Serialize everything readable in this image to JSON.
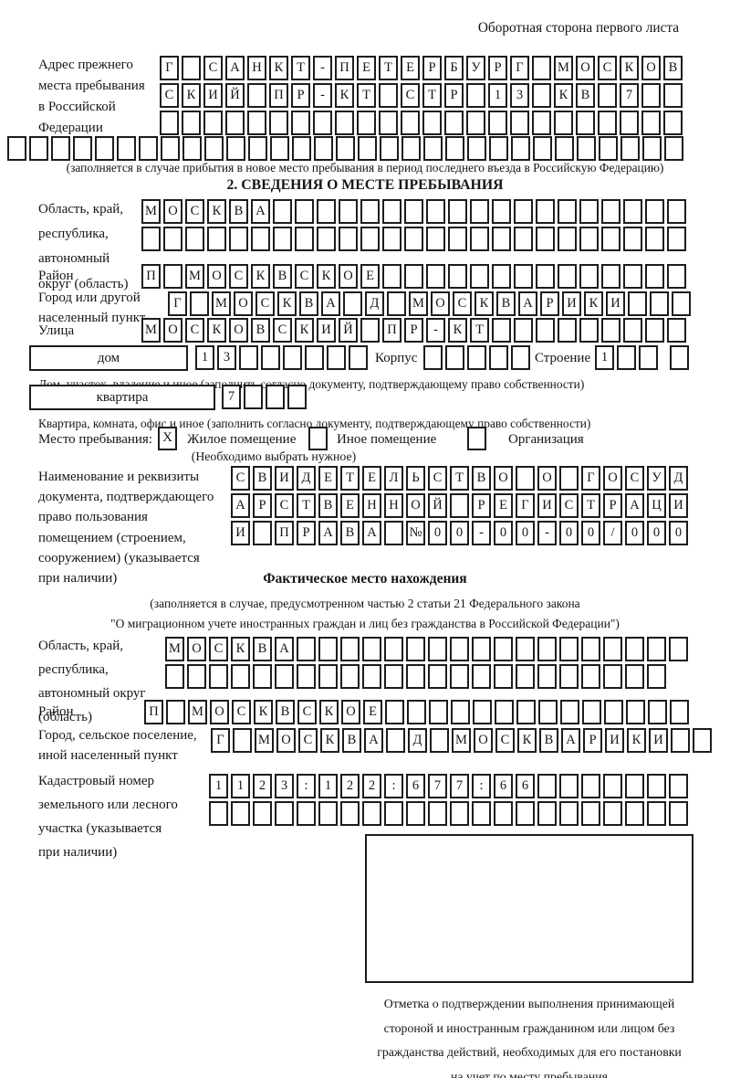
{
  "colors": {
    "ink": "#1c1c1c",
    "paper": "#ffffff"
  },
  "page": {
    "header_note": "Оборотная сторона первого листа"
  },
  "prev_address": {
    "label_lines": [
      "Адрес прежнего",
      "места пребывания",
      "в Российской",
      "Федерации"
    ],
    "rows": [
      [
        "Г",
        "",
        "С",
        "А",
        "Н",
        "К",
        "Т",
        "-",
        "П",
        "Е",
        "Т",
        "Е",
        "Р",
        "Б",
        "У",
        "Р",
        "Г",
        "",
        "М",
        "О",
        "С",
        "К",
        "О",
        "В"
      ],
      [
        "С",
        "К",
        "И",
        "Й",
        "",
        "П",
        "Р",
        "-",
        "К",
        "Т",
        "",
        "С",
        "Т",
        "Р",
        "",
        "1",
        "3",
        "",
        "К",
        "В",
        "",
        "7",
        "",
        ""
      ],
      [
        "",
        "",
        "",
        "",
        "",
        "",
        "",
        "",
        "",
        "",
        "",
        "",
        "",
        "",
        "",
        "",
        "",
        "",
        "",
        "",
        "",
        "",
        "",
        ""
      ]
    ],
    "overflow_row": [
      "",
      "",
      "",
      "",
      "",
      "",
      "",
      "",
      "",
      "",
      "",
      "",
      "",
      "",
      "",
      "",
      "",
      "",
      "",
      "",
      "",
      "",
      "",
      "",
      "",
      "",
      "",
      "",
      "",
      "",
      ""
    ],
    "note": "(заполняется в случае прибытия в новое место пребывания в период последнего въезда в Российскую Федерацию)"
  },
  "section2": {
    "title": "2. СВЕДЕНИЯ О МЕСТЕ ПРЕБЫВАНИЯ",
    "region": {
      "label_lines": [
        "Область, край,",
        "республика,",
        "автономный",
        "округ (область)"
      ],
      "rows": [
        [
          "М",
          "О",
          "С",
          "К",
          "В",
          "А",
          "",
          "",
          "",
          "",
          "",
          "",
          "",
          "",
          "",
          "",
          "",
          "",
          "",
          "",
          "",
          "",
          "",
          "",
          ""
        ],
        [
          "",
          "",
          "",
          "",
          "",
          "",
          "",
          "",
          "",
          "",
          "",
          "",
          "",
          "",
          "",
          "",
          "",
          "",
          "",
          "",
          "",
          "",
          "",
          "",
          ""
        ]
      ]
    },
    "district": {
      "label": "Район",
      "row": [
        "П",
        "",
        "М",
        "О",
        "С",
        "К",
        "В",
        "С",
        "К",
        "О",
        "Е",
        "",
        "",
        "",
        "",
        "",
        "",
        "",
        "",
        "",
        "",
        "",
        "",
        "",
        ""
      ]
    },
    "city": {
      "label_lines": [
        "Город или другой",
        "населенный пункт"
      ],
      "row": [
        "Г",
        "",
        "М",
        "О",
        "С",
        "К",
        "В",
        "А",
        "",
        "Д",
        "",
        "М",
        "О",
        "С",
        "К",
        "В",
        "А",
        "Р",
        "И",
        "К",
        "И",
        "",
        "",
        ""
      ]
    },
    "street": {
      "label": "Улица",
      "row": [
        "М",
        "О",
        "С",
        "К",
        "О",
        "В",
        "С",
        "К",
        "И",
        "Й",
        "",
        "П",
        "Р",
        "-",
        "К",
        "Т",
        "",
        "",
        "",
        "",
        "",
        "",
        "",
        "",
        ""
      ]
    },
    "house_row": {
      "box_label": "дом",
      "house_cells": [
        "1",
        "3",
        "",
        "",
        "",
        "",
        "",
        ""
      ],
      "corpus_label": "Корпус",
      "corpus_cells": [
        "",
        "",
        "",
        "",
        ""
      ],
      "building_label": "Строение",
      "building_cells": [
        "1",
        "",
        ""
      ],
      "building_last_cell": [
        ""
      ]
    },
    "house_note": "Дом, участок, владение и иное (заполнить согласно документу, подтверждающему право собственности)",
    "apartment_row": {
      "box_label": "квартира",
      "cells": [
        "7",
        "",
        "",
        ""
      ]
    },
    "apartment_note": "Квартира, комната, офис и иное (заполнить согласно документу, подтверждающему право собственности)",
    "stay_type": {
      "label": "Место пребывания:",
      "options": [
        {
          "label": "Жилое помещение",
          "mark": "X"
        },
        {
          "label": "Иное помещение",
          "mark": ""
        },
        {
          "label": "Организация",
          "mark": ""
        }
      ],
      "note": "(Необходимо выбрать нужное)"
    },
    "document": {
      "label_lines": [
        "Наименование и реквизиты",
        "документа, подтверждающего",
        "право пользования",
        "помещением (строением,",
        "сооружением) (указывается",
        "при наличии)"
      ],
      "rows": [
        [
          "С",
          "В",
          "И",
          "Д",
          "Е",
          "Т",
          "Е",
          "Л",
          "Ь",
          "С",
          "Т",
          "В",
          "О",
          "",
          "О",
          "",
          "Г",
          "О",
          "С",
          "У",
          "Д"
        ],
        [
          "А",
          "Р",
          "С",
          "Т",
          "В",
          "Е",
          "Н",
          "Н",
          "О",
          "Й",
          "",
          "Р",
          "Е",
          "Г",
          "И",
          "С",
          "Т",
          "Р",
          "А",
          "Ц",
          "И"
        ],
        [
          "И",
          "",
          "П",
          "Р",
          "А",
          "В",
          "А",
          "",
          "№",
          "0",
          "0",
          "-",
          "0",
          "0",
          "-",
          "0",
          "0",
          "/",
          "0",
          "0",
          "0"
        ]
      ]
    }
  },
  "actual_location": {
    "title": "Фактическое место нахождения",
    "note_lines": [
      "(заполняется в случае, предусмотренном частью 2 статьи 21 Федерального закона",
      "\"О миграционном учете иностранных граждан и лиц без гражданства в Российской Федерации\")"
    ],
    "region": {
      "label_lines": [
        "Область, край,",
        "республика,",
        "автономный округ",
        "(область)"
      ],
      "rows": [
        [
          "М",
          "О",
          "С",
          "К",
          "В",
          "А",
          "",
          "",
          "",
          "",
          "",
          "",
          "",
          "",
          "",
          "",
          "",
          "",
          "",
          "",
          "",
          "",
          "",
          ""
        ],
        [
          "",
          "",
          "",
          "",
          "",
          "",
          "",
          "",
          "",
          "",
          "",
          "",
          "",
          "",
          "",
          "",
          "",
          "",
          "",
          "",
          "",
          "",
          ""
        ]
      ]
    },
    "district": {
      "label": "Район",
      "row": [
        "П",
        "",
        "М",
        "О",
        "С",
        "К",
        "В",
        "С",
        "К",
        "О",
        "Е",
        "",
        "",
        "",
        "",
        "",
        "",
        "",
        "",
        "",
        "",
        "",
        "",
        "",
        ""
      ]
    },
    "city": {
      "label_lines": [
        "Город, сельское поселение,",
        "иной населенный пункт"
      ],
      "row": [
        "Г",
        "",
        "М",
        "О",
        "С",
        "К",
        "В",
        "А",
        "",
        "Д",
        "",
        "М",
        "О",
        "С",
        "К",
        "В",
        "А",
        "Р",
        "И",
        "К",
        "И",
        "",
        ""
      ]
    },
    "cadastral": {
      "label_lines": [
        "Кадастровый номер",
        "земельного или лесного",
        "участка (указывается",
        "при наличии)"
      ],
      "rows": [
        [
          "1",
          "1",
          "2",
          "3",
          ":",
          "1",
          "2",
          "2",
          ":",
          "6",
          "7",
          "7",
          ":",
          "6",
          "6",
          "",
          "",
          "",
          "",
          "",
          "",
          ""
        ],
        [
          "",
          "",
          "",
          "",
          "",
          "",
          "",
          "",
          "",
          "",
          "",
          "",
          "",
          "",
          "",
          "",
          "",
          "",
          "",
          "",
          "",
          ""
        ]
      ]
    },
    "stamp_note_lines": [
      "Отметка о подтверждении выполнения принимающей",
      "стороной и иностранным гражданином или лицом без",
      "гражданства действий, необходимых для его постановки",
      "на учет по месту пребывания"
    ]
  }
}
